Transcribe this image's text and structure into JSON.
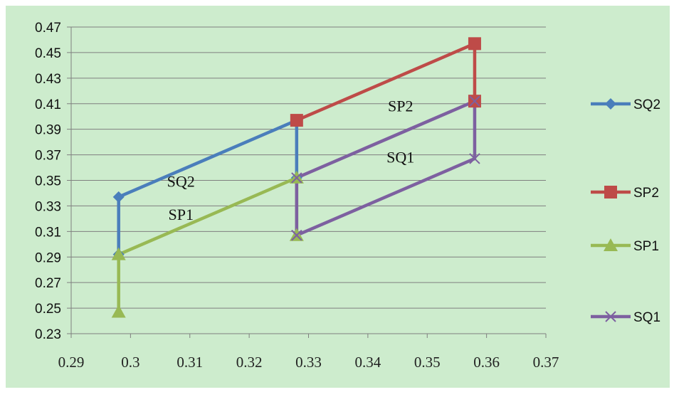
{
  "colors": {
    "background": "#cdeccd",
    "gridline": "#7f7f7f",
    "axis": "#7f7f7f",
    "SQ2": "#4a7ebb",
    "SP2": "#be4b48",
    "SP1": "#98b954",
    "SQ1": "#7d60a0"
  },
  "chart_data": {
    "type": "line",
    "title": "",
    "xlabel": "",
    "ylabel": "",
    "xlim": [
      0.29,
      0.37
    ],
    "ylim": [
      0.23,
      0.47
    ],
    "xticks": [
      "0.29",
      "0.3",
      "0.31",
      "0.32",
      "0.33",
      "0.34",
      "0.35",
      "0.36",
      "0.37"
    ],
    "yticks": [
      "0.23",
      "0.25",
      "0.27",
      "0.29",
      "0.31",
      "0.33",
      "0.35",
      "0.37",
      "0.39",
      "0.41",
      "0.43",
      "0.45",
      "0.47"
    ],
    "grid": "horizontal",
    "legend_position": "right",
    "series": [
      {
        "name": "SQ2",
        "marker": "diamond",
        "x": [
          0.298,
          0.298,
          0.328,
          0.328
        ],
        "y": [
          0.292,
          0.337,
          0.397,
          0.352
        ]
      },
      {
        "name": "SP2",
        "marker": "square",
        "x": [
          0.328,
          0.358,
          0.358
        ],
        "y": [
          0.397,
          0.457,
          0.412
        ]
      },
      {
        "name": "SP1",
        "marker": "triangle",
        "x": [
          0.298,
          0.298,
          0.328,
          0.328
        ],
        "y": [
          0.247,
          0.292,
          0.352,
          0.307
        ]
      },
      {
        "name": "SQ1",
        "marker": "x",
        "x": [
          0.328,
          0.358,
          0.358,
          0.328,
          0.328
        ],
        "y": [
          0.307,
          0.367,
          0.412,
          0.352,
          0.307
        ]
      }
    ],
    "annotations": [
      {
        "text": "SQ2",
        "x": 0.3085,
        "y": 0.345
      },
      {
        "text": "SP1",
        "x": 0.3085,
        "y": 0.319
      },
      {
        "text": "SP2",
        "x": 0.3455,
        "y": 0.404
      },
      {
        "text": "SQ1",
        "x": 0.3455,
        "y": 0.364
      }
    ]
  }
}
